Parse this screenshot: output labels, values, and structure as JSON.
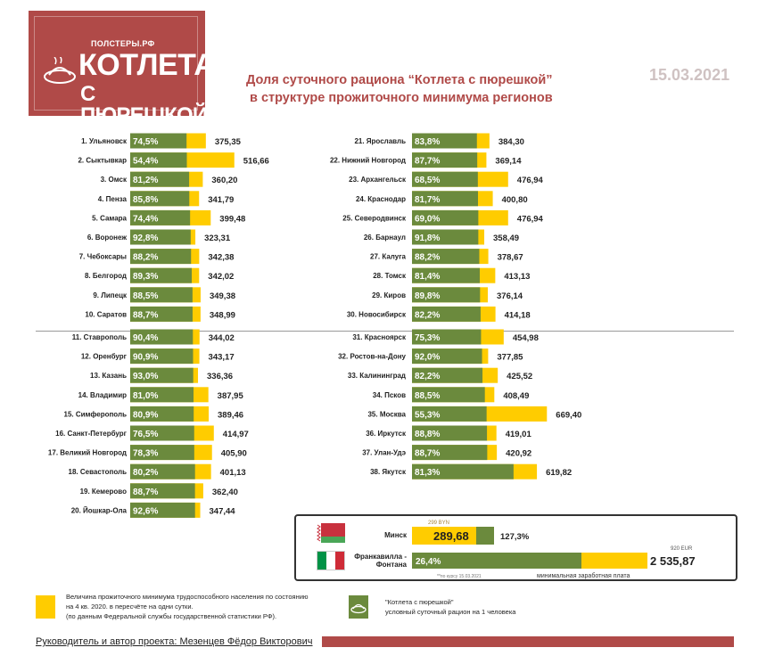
{
  "header": {
    "logo_small": "ПОЛСТЕРЫ.РФ",
    "logo_line1": "КОТЛЕТА",
    "logo_line2": "С ПЮРЕШКОЙ",
    "title_line1": "Доля суточного рациона “Котлета с пюрешкой”",
    "title_line2": "в структуре прожиточного минимума регионов",
    "date": "15.03.2021"
  },
  "colors": {
    "accent": "#b04a48",
    "yellow": "#ffcc00",
    "green": "#6b8a3d",
    "date": "#cfc2c2"
  },
  "chart_data": {
    "type": "bar",
    "value_label": "Величина прожиточного минимума трудоспособного населения (руб. в сутки)",
    "left_regions": [
      {
        "rank_name": "1. Ульяновск",
        "share": "74,5%",
        "value": 375.35,
        "value_text": "375,35"
      },
      {
        "rank_name": "2. Сыктывкар",
        "share": "54,4%",
        "value": 516.66,
        "value_text": "516,66"
      },
      {
        "rank_name": "3. Омск",
        "share": "81,2%",
        "value": 360.2,
        "value_text": "360,20"
      },
      {
        "rank_name": "4. Пенза",
        "share": "85,8%",
        "value": 341.79,
        "value_text": "341,79"
      },
      {
        "rank_name": "5. Самара",
        "share": "74,4%",
        "value": 399.48,
        "value_text": "399,48"
      },
      {
        "rank_name": "6. Воронеж",
        "share": "92,8%",
        "value": 323.31,
        "value_text": "323,31"
      },
      {
        "rank_name": "7. Чебоксары",
        "share": "88,2%",
        "value": 342.38,
        "value_text": "342,38"
      },
      {
        "rank_name": "8. Белгород",
        "share": "89,3%",
        "value": 342.02,
        "value_text": "342,02"
      },
      {
        "rank_name": "9. Липецк",
        "share": "88,5%",
        "value": 349.38,
        "value_text": "349,38"
      },
      {
        "rank_name": "10. Саратов",
        "share": "88,7%",
        "value": 348.99,
        "value_text": "348,99"
      },
      {
        "rank_name": "11. Ставрополь",
        "share": "90,4%",
        "value": 344.02,
        "value_text": "344,02"
      },
      {
        "rank_name": "12. Оренбург",
        "share": "90,9%",
        "value": 343.17,
        "value_text": "343,17"
      },
      {
        "rank_name": "13. Казань",
        "share": "93,0%",
        "value": 336.36,
        "value_text": "336,36"
      },
      {
        "rank_name": "14. Владимир",
        "share": "81,0%",
        "value": 387.95,
        "value_text": "387,95"
      },
      {
        "rank_name": "15. Симферополь",
        "share": "80,9%",
        "value": 389.46,
        "value_text": "389,46"
      },
      {
        "rank_name": "16. Санкт-Петербург",
        "share": "76,5%",
        "value": 414.97,
        "value_text": "414,97"
      },
      {
        "rank_name": "17. Великий Новгород",
        "share": "78,3%",
        "value": 405.9,
        "value_text": "405,90"
      },
      {
        "rank_name": "18. Севастополь",
        "share": "80,2%",
        "value": 401.13,
        "value_text": "401,13"
      },
      {
        "rank_name": "19. Кемерово",
        "share": "88,7%",
        "value": 362.4,
        "value_text": "362,40"
      },
      {
        "rank_name": "20. Йошкар-Ола",
        "share": "92,6%",
        "value": 347.44,
        "value_text": "347,44"
      }
    ],
    "right_regions": [
      {
        "rank_name": "21. Ярославль",
        "share": "83,8%",
        "value": 384.3,
        "value_text": "384,30"
      },
      {
        "rank_name": "22. Нижний Новгород",
        "share": "87,7%",
        "value": 369.14,
        "value_text": "369,14"
      },
      {
        "rank_name": "23. Архангельск",
        "share": "68,5%",
        "value": 476.94,
        "value_text": "476,94"
      },
      {
        "rank_name": "24. Краснодар",
        "share": "81,7%",
        "value": 400.8,
        "value_text": "400,80"
      },
      {
        "rank_name": "25. Северодвинск",
        "share": "69,0%",
        "value": 476.94,
        "value_text": "476,94"
      },
      {
        "rank_name": "26. Барнаул",
        "share": "91,8%",
        "value": 358.49,
        "value_text": "358,49"
      },
      {
        "rank_name": "27. Калуга",
        "share": "88,2%",
        "value": 378.67,
        "value_text": "378,67"
      },
      {
        "rank_name": "28. Томск",
        "share": "81,4%",
        "value": 413.13,
        "value_text": "413,13"
      },
      {
        "rank_name": "29. Киров",
        "share": "89,8%",
        "value": 376.14,
        "value_text": "376,14"
      },
      {
        "rank_name": "30. Новосибирск",
        "share": "82,2%",
        "value": 414.18,
        "value_text": "414,18"
      },
      {
        "rank_name": "31. Красноярск",
        "share": "75,3%",
        "value": 454.98,
        "value_text": "454,98"
      },
      {
        "rank_name": "32. Ростов-на-Дону",
        "share": "92,0%",
        "value": 377.85,
        "value_text": "377,85"
      },
      {
        "rank_name": "33. Калининград",
        "share": "82,2%",
        "value": 425.52,
        "value_text": "425,52"
      },
      {
        "rank_name": "34. Псков",
        "share": "88,5%",
        "value": 408.49,
        "value_text": "408,49"
      },
      {
        "rank_name": "35. Москва",
        "share": "55,3%",
        "value": 669.4,
        "value_text": "669,40"
      },
      {
        "rank_name": "36. Иркутск",
        "share": "88,8%",
        "value": 419.01,
        "value_text": "419,01"
      },
      {
        "rank_name": "37. Улан-Удэ",
        "share": "88,7%",
        "value": 420.92,
        "value_text": "420,92"
      },
      {
        "rank_name": "38. Якутск",
        "share": "81,3%",
        "value": 619.82,
        "value_text": "619,82"
      }
    ],
    "comparison": [
      {
        "name": "Минск",
        "share": "127,3%",
        "value_text": "289,68",
        "wage_label": "299 BYN",
        "value": 289.68
      },
      {
        "name": "Франкавилла - Фонтана",
        "share": "26,4%",
        "value_text": "2 535,87",
        "wage_label": "920 EUR",
        "value": 2535.87
      }
    ],
    "comparison_footnote": "**по курсу 15.03.2021",
    "comparison_wage_caption": "минимальная заработная плата"
  },
  "legend": {
    "yellow_text_1": "Величина прожиточного минимума трудоспособного населения по состоянию",
    "yellow_text_2": "на 4 кв. 2020. в пересчёте на одни сутки.",
    "yellow_text_3": "(по данным Федеральной службы государственной статистики РФ).",
    "green_text_1": "\"Котлета с пюрешкой\"",
    "green_text_2": "условный суточный рацион на 1 человека"
  },
  "footer": {
    "author": "Руководитель и автор проекта: Мезенцев Фёдор Викторович"
  }
}
